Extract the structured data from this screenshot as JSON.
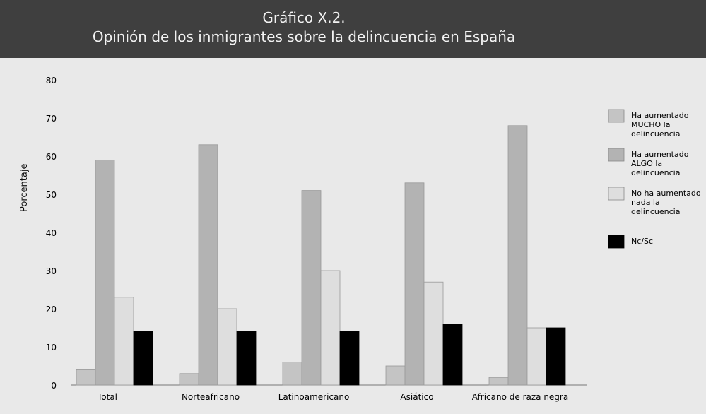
{
  "chart_data": {
    "type": "bar",
    "title": "Gráfico X.2.",
    "subtitle": "Opinión de los inmigrantes sobre la delincuencia en España",
    "xlabel": "",
    "ylabel": "Porcentaje",
    "ylim": [
      0,
      80
    ],
    "yticks": [
      0,
      10,
      20,
      30,
      40,
      50,
      60,
      70,
      80
    ],
    "grid": false,
    "legend_position": "right",
    "categories": [
      "Total",
      "Norteafricano",
      "Latinoamericano",
      "Asiático",
      "Africano de raza negra"
    ],
    "series": [
      {
        "name": "Ha aumentado MUCHO la delincuencia",
        "color": "#c4c4c4",
        "values": [
          4,
          3,
          6,
          5,
          2
        ]
      },
      {
        "name": "Ha aumentado ALGO la delincuencia",
        "color": "#b3b3b3",
        "values": [
          59,
          63,
          51,
          53,
          68
        ]
      },
      {
        "name": "No ha aumentado nada la delincuencia",
        "color": "#dedede",
        "values": [
          23,
          20,
          30,
          27,
          15
        ]
      },
      {
        "name": "Nc/Sc",
        "color": "#000000",
        "values": [
          14,
          14,
          14,
          16,
          15
        ]
      }
    ]
  }
}
